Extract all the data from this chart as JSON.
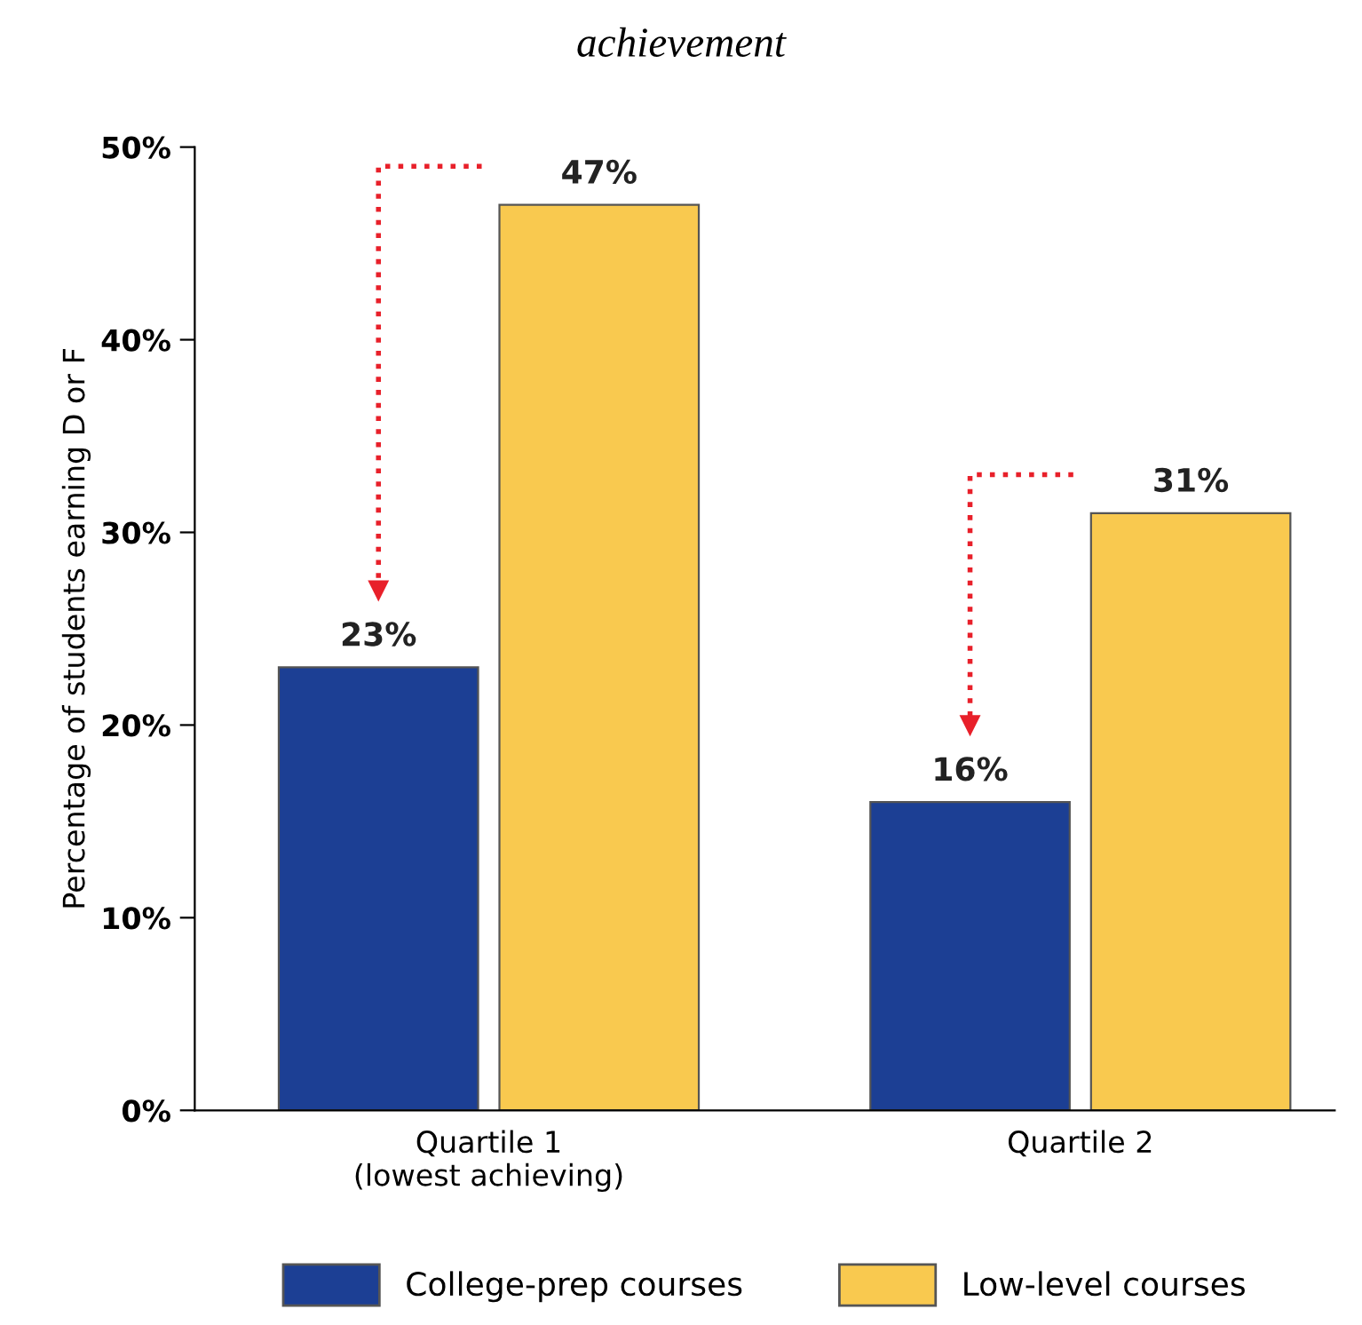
{
  "chart_data": {
    "type": "bar",
    "title": "achievement",
    "ylabel": "Percentage of students earning D or F",
    "categories": [
      "Quartile 1\n(lowest achieving)",
      "Quartile 2"
    ],
    "series": [
      {
        "name": "College-prep courses",
        "color": "#1c3f94",
        "values": [
          23,
          16
        ],
        "value_labels": [
          "23%",
          "16%"
        ]
      },
      {
        "name": "Low-level courses",
        "color": "#f9c94f",
        "values": [
          47,
          31
        ],
        "value_labels": [
          "47%",
          "31%"
        ]
      }
    ],
    "ylim": [
      0,
      50
    ],
    "yticks": [
      {
        "value": 0,
        "label": "0%"
      },
      {
        "value": 10,
        "label": "10%"
      },
      {
        "value": 20,
        "label": "20%"
      },
      {
        "value": 30,
        "label": "30%"
      },
      {
        "value": 40,
        "label": "40%"
      },
      {
        "value": 50,
        "label": "50%"
      }
    ],
    "grid": false,
    "legend": "bottom"
  }
}
